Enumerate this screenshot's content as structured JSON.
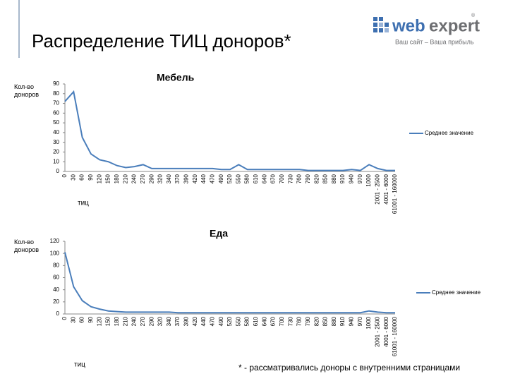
{
  "title": "Распределение ТИЦ доноров*",
  "logo": {
    "part1": "web",
    "part2": "expert",
    "mark": "®",
    "tagline": "Ваш сайт – Ваша прибыль"
  },
  "footnote": "* - рассматривались доноры с внутренними страницами",
  "chart_data": [
    {
      "type": "line",
      "title": "Мебель",
      "y_label": "Кол-во доноров",
      "x_label": "тиц",
      "legend": "right",
      "categories": [
        "0",
        "30",
        "60",
        "90",
        "120",
        "150",
        "180",
        "210",
        "240",
        "270",
        "290",
        "320",
        "340",
        "370",
        "390",
        "420",
        "440",
        "470",
        "490",
        "520",
        "550",
        "580",
        "610",
        "640",
        "670",
        "700",
        "730",
        "760",
        "790",
        "820",
        "850",
        "880",
        "910",
        "940",
        "970",
        "1000",
        "2001 - 2500",
        "4001 - 6000",
        "61001 - 160000"
      ],
      "series": [
        {
          "name": "Среднее значение",
          "color": "#4a7ebb",
          "values": [
            72,
            82,
            35,
            18,
            12,
            10,
            6,
            4,
            5,
            7,
            3,
            3,
            3,
            3,
            3,
            3,
            3,
            3,
            2,
            2,
            7,
            2,
            2,
            2,
            2,
            2,
            2,
            2,
            1,
            1,
            1,
            1,
            1,
            2,
            1,
            7,
            3,
            1,
            1
          ]
        }
      ],
      "ylim": [
        0,
        90
      ],
      "yticks": [
        0,
        10,
        20,
        30,
        40,
        50,
        60,
        70,
        80,
        90
      ]
    },
    {
      "type": "line",
      "title": "Еда",
      "y_label": "Кол-во доноров",
      "x_label": "тиц",
      "legend": "right",
      "categories": [
        "0",
        "30",
        "60",
        "90",
        "120",
        "150",
        "180",
        "210",
        "240",
        "270",
        "290",
        "320",
        "340",
        "370",
        "390",
        "420",
        "440",
        "470",
        "490",
        "520",
        "550",
        "580",
        "610",
        "640",
        "670",
        "700",
        "730",
        "760",
        "790",
        "820",
        "850",
        "880",
        "910",
        "940",
        "970",
        "1000",
        "2001 - 2500",
        "4001 - 6000",
        "61001 - 160000"
      ],
      "series": [
        {
          "name": "Среднее значение",
          "color": "#4a7ebb",
          "values": [
            102,
            45,
            22,
            12,
            8,
            5,
            4,
            3,
            3,
            3,
            3,
            3,
            3,
            2,
            2,
            2,
            2,
            2,
            2,
            2,
            2,
            2,
            2,
            2,
            2,
            2,
            2,
            2,
            2,
            2,
            2,
            2,
            2,
            2,
            2,
            5,
            3,
            2,
            2
          ]
        }
      ],
      "ylim": [
        0,
        120
      ],
      "yticks": [
        0,
        20,
        40,
        60,
        80,
        100,
        120
      ]
    }
  ]
}
